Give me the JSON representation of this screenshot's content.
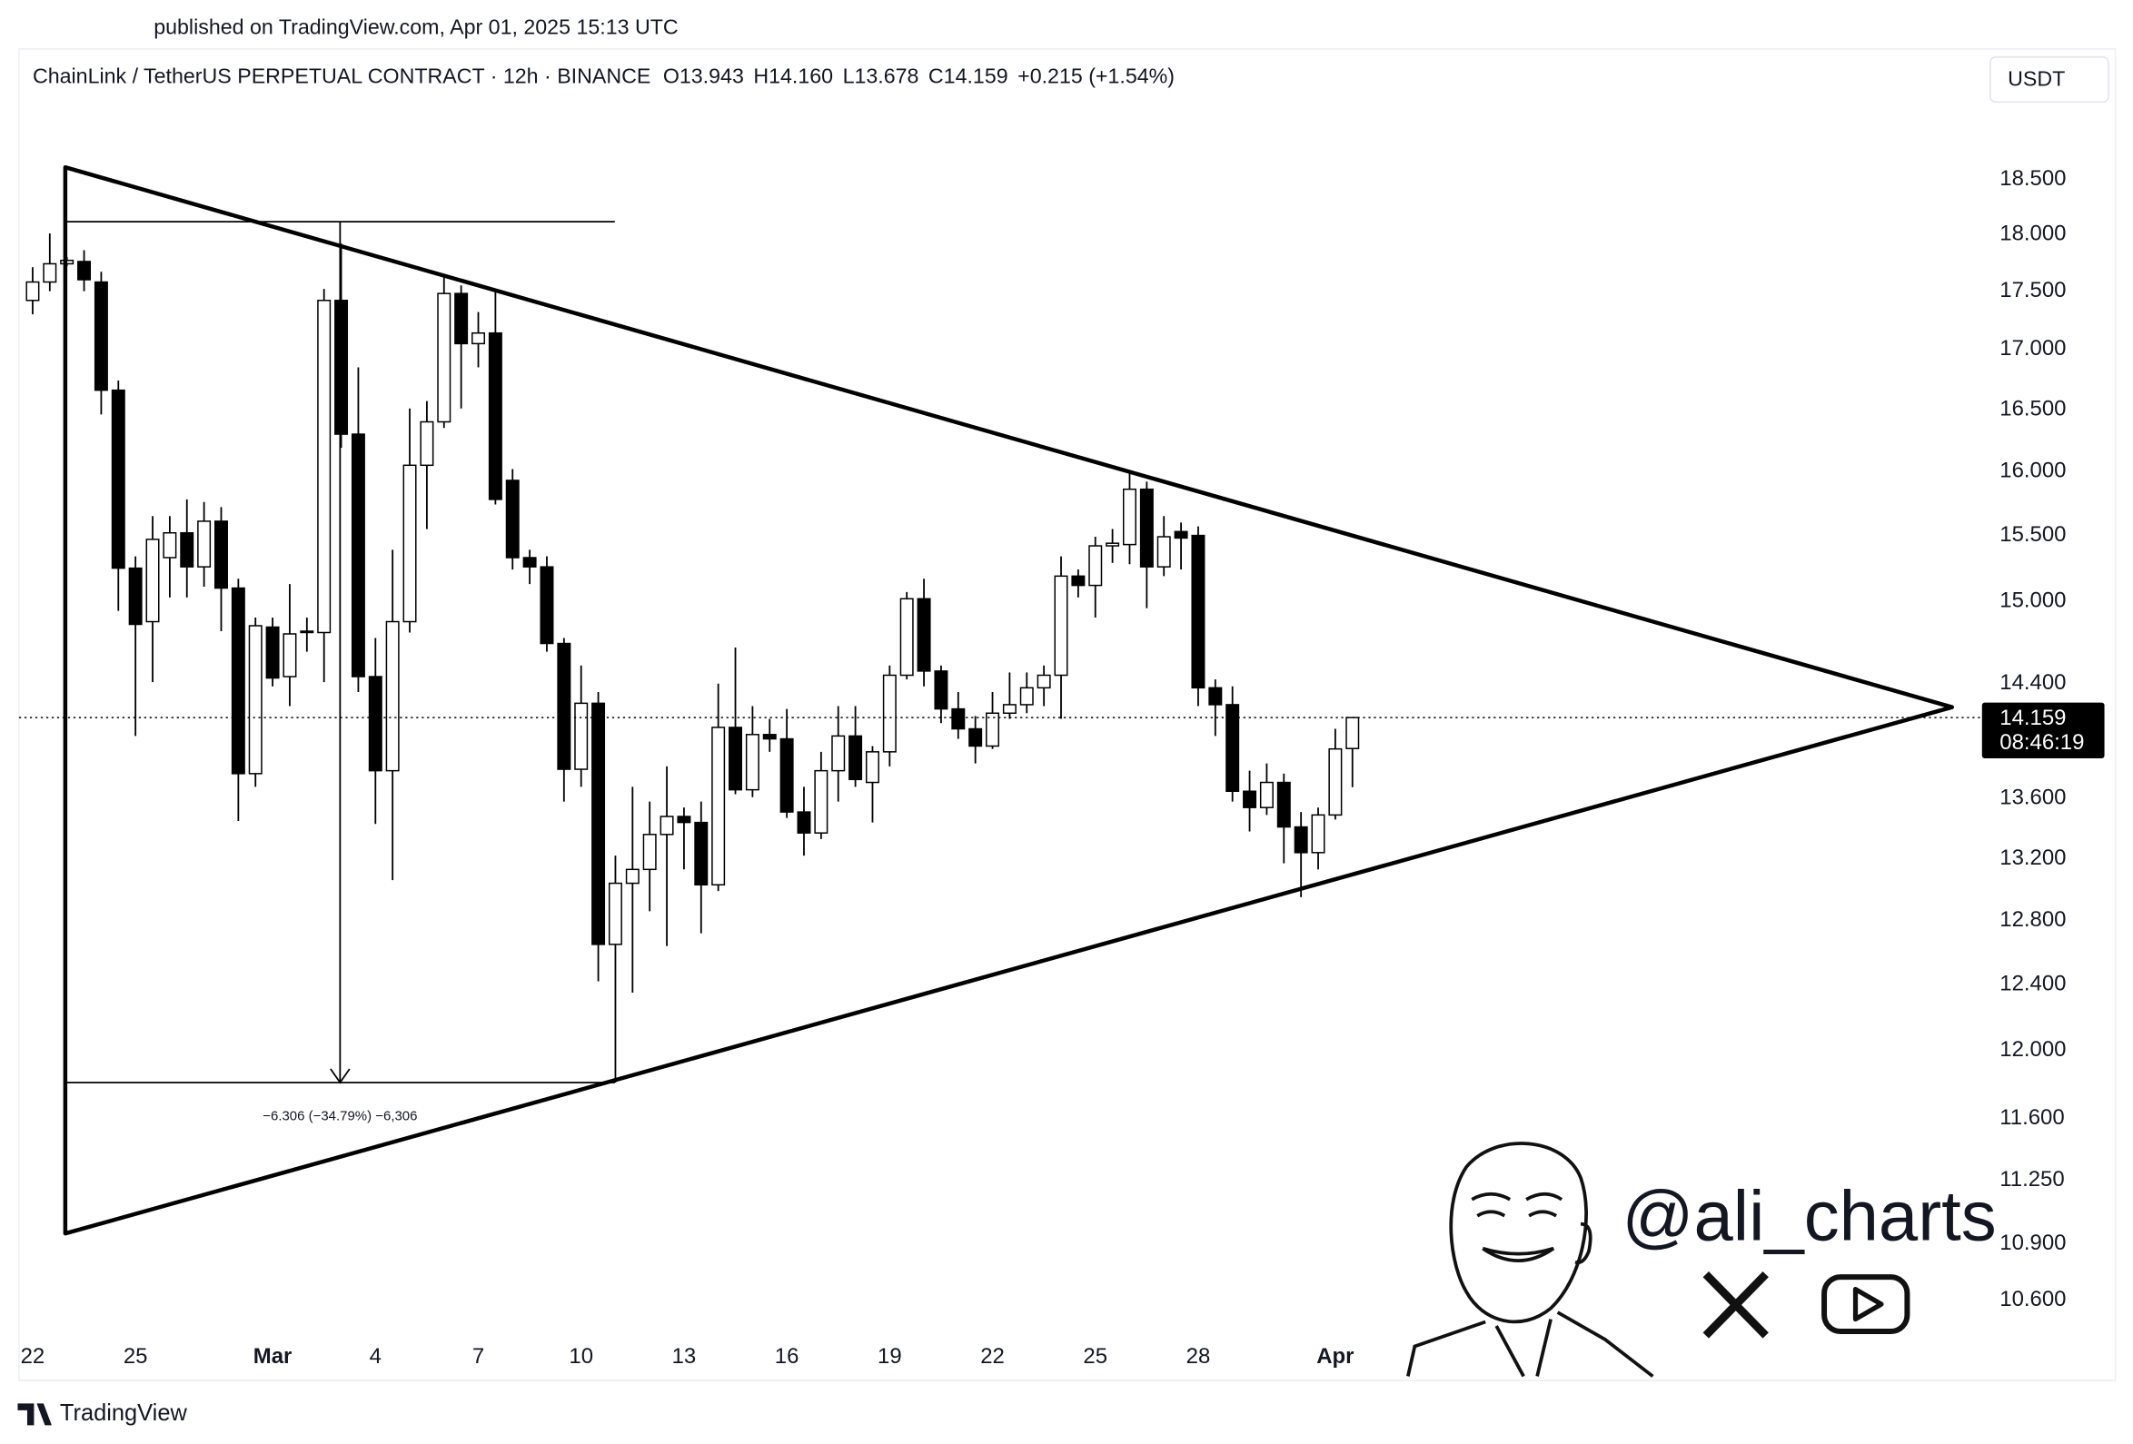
{
  "published": "published on TradingView.com, Apr 01, 2025 15:13 UTC",
  "currency": "USDT",
  "watermark": "@ali_charts",
  "brand": "TradingView",
  "chart_data": {
    "type": "candlestick",
    "title": "ChainLink / TetherUS PERPETUAL CONTRACT · 12h · BINANCE",
    "legend": [
      "O13.943",
      "H14.160",
      "L13.678",
      "C14.159",
      "+0.215 (+1.54%)"
    ],
    "last_price_label": "14.159",
    "countdown": "08:46:19",
    "annotation": "−6.306 (−34.79%) −6,306",
    "log_scale": true,
    "up_color": "#ffffff",
    "down_color": "#000000",
    "categories": [
      "22",
      null,
      null,
      null,
      null,
      null,
      "25",
      null,
      null,
      null,
      null,
      null,
      null,
      null,
      "Mar",
      null,
      null,
      null,
      null,
      null,
      "4",
      null,
      null,
      null,
      null,
      null,
      "7",
      null,
      null,
      null,
      null,
      null,
      "10",
      null,
      null,
      null,
      null,
      null,
      "13",
      null,
      null,
      null,
      null,
      null,
      "16",
      null,
      null,
      null,
      null,
      null,
      "19",
      null,
      null,
      null,
      null,
      null,
      "22",
      null,
      null,
      null,
      null,
      null,
      "25",
      null,
      null,
      null,
      null,
      null,
      "28",
      null,
      null,
      null,
      null,
      null,
      null,
      null,
      "Apr",
      null
    ],
    "open": [
      17.42,
      17.58,
      17.74,
      17.76,
      17.58,
      16.66,
      15.25,
      14.85,
      15.33,
      15.52,
      15.26,
      15.61,
      15.1,
      13.77,
      14.81,
      14.45,
      14.77,
      14.77,
      17.42,
      16.3,
      14.45,
      13.79,
      14.85,
      16.05,
      16.4,
      17.48,
      17.05,
      17.14,
      15.93,
      15.33,
      15.26,
      14.69,
      13.8,
      14.26,
      12.65,
      13.04,
      13.13,
      13.36,
      13.48,
      13.44,
      13.03,
      14.09,
      13.66,
      14.04,
      14.01,
      13.51,
      13.37,
      13.79,
      14.03,
      13.71,
      13.92,
      14.46,
      15.02,
      14.49,
      14.22,
      14.08,
      13.96,
      14.19,
      14.25,
      14.37,
      14.46,
      15.19,
      15.12,
      15.42,
      15.43,
      15.86,
      15.26,
      15.53,
      15.5,
      14.37,
      14.25,
      13.65,
      13.54,
      13.71,
      13.41,
      13.24,
      13.49,
      13.943
    ],
    "high": [
      17.71,
      18.01,
      17.8,
      17.86,
      17.67,
      16.74,
      15.34,
      15.65,
      15.65,
      15.78,
      15.76,
      15.72,
      15.17,
      14.88,
      14.88,
      15.13,
      14.88,
      17.52,
      17.92,
      16.85,
      14.73,
      15.39,
      16.51,
      16.57,
      17.63,
      17.55,
      17.32,
      17.51,
      16.02,
      15.39,
      15.34,
      14.73,
      14.53,
      14.34,
      13.22,
      13.68,
      13.58,
      13.82,
      13.54,
      13.58,
      14.4,
      14.66,
      14.24,
      14.15,
      14.22,
      13.68,
      13.92,
      14.24,
      14.24,
      13.96,
      14.53,
      15.07,
      15.17,
      14.53,
      14.34,
      14.17,
      14.34,
      14.48,
      14.48,
      14.53,
      15.34,
      15.24,
      15.49,
      15.55,
      16.0,
      15.92,
      15.65,
      15.6,
      15.57,
      14.43,
      14.38,
      13.79,
      13.84,
      13.77,
      13.51,
      13.54,
      14.08,
      14.16
    ],
    "low": [
      17.3,
      17.5,
      17.72,
      17.5,
      16.46,
      14.93,
      14.03,
      14.41,
      15.03,
      15.03,
      15.11,
      14.78,
      13.45,
      13.68,
      14.38,
      14.24,
      14.63,
      14.41,
      16.19,
      14.34,
      13.43,
      13.06,
      14.77,
      15.55,
      16.35,
      16.51,
      16.85,
      15.74,
      15.24,
      15.13,
      14.63,
      13.58,
      13.68,
      12.42,
      11.81,
      12.35,
      12.86,
      12.64,
      13.13,
      12.72,
      12.99,
      13.63,
      13.61,
      13.92,
      13.47,
      13.22,
      13.33,
      13.58,
      13.68,
      13.44,
      13.82,
      14.43,
      14.38,
      14.12,
      14.01,
      13.84,
      13.94,
      14.15,
      14.19,
      14.24,
      14.15,
      15.03,
      14.88,
      15.29,
      15.28,
      14.95,
      15.19,
      15.24,
      14.24,
      14.03,
      13.58,
      13.38,
      13.49,
      13.17,
      12.95,
      13.13,
      13.46,
      13.678
    ],
    "close": [
      17.58,
      17.74,
      17.77,
      17.6,
      16.66,
      15.25,
      14.83,
      15.47,
      15.52,
      15.26,
      15.61,
      15.1,
      13.77,
      14.82,
      14.44,
      14.76,
      14.78,
      17.42,
      16.3,
      14.45,
      13.79,
      14.85,
      16.05,
      16.4,
      17.48,
      17.05,
      17.14,
      15.78,
      15.33,
      15.26,
      14.69,
      13.8,
      14.26,
      12.65,
      13.04,
      13.13,
      13.36,
      13.48,
      13.44,
      13.03,
      14.09,
      13.66,
      14.04,
      14.01,
      13.51,
      13.37,
      13.79,
      14.03,
      13.73,
      13.92,
      14.46,
      15.02,
      14.49,
      14.22,
      14.08,
      13.96,
      14.19,
      14.25,
      14.37,
      14.46,
      15.19,
      15.12,
      15.42,
      15.44,
      15.86,
      15.26,
      15.49,
      15.48,
      14.37,
      14.25,
      13.65,
      13.54,
      13.71,
      13.41,
      13.24,
      13.49,
      13.94,
      14.159
    ],
    "ylim": [
      10.43,
      19.16
    ],
    "yticks": [
      {
        "value": 18.5,
        "label": "18.500"
      },
      {
        "value": 18,
        "label": "18.000"
      },
      {
        "value": 17.5,
        "label": "17.500"
      },
      {
        "value": 17,
        "label": "17.000"
      },
      {
        "value": 16.5,
        "label": "16.500"
      },
      {
        "value": 16,
        "label": "16.000"
      },
      {
        "value": 15.5,
        "label": "15.500"
      },
      {
        "value": 15,
        "label": "15.000"
      },
      {
        "value": 14.4,
        "label": "14.400"
      },
      {
        "value": 13.6,
        "label": "13.600"
      },
      {
        "value": 13.2,
        "label": "13.200"
      },
      {
        "value": 12.8,
        "label": "12.800"
      },
      {
        "value": 12.4,
        "label": "12.400"
      },
      {
        "value": 12,
        "label": "12.000"
      },
      {
        "value": 11.6,
        "label": "11.600"
      },
      {
        "value": 11.25,
        "label": "11.250"
      },
      {
        "value": 10.9,
        "label": "10.900"
      },
      {
        "value": 10.6,
        "label": "10.600"
      }
    ]
  }
}
